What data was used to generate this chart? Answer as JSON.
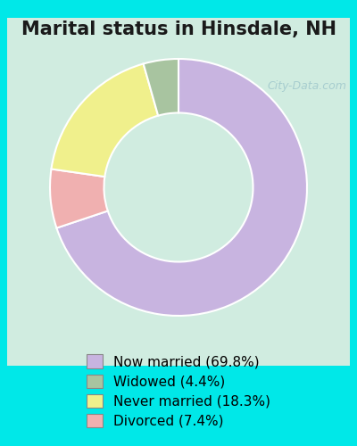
{
  "title": "Marital status in Hinsdale, NH",
  "slices": [
    69.8,
    4.4,
    18.3,
    7.4
  ],
  "labels": [
    "Now married (69.8%)",
    "Widowed (4.4%)",
    "Never married (18.3%)",
    "Divorced (7.4%)"
  ],
  "colors": [
    "#c8b4e0",
    "#a8c4a0",
    "#f0f08c",
    "#f0b0b0"
  ],
  "legend_colors": [
    "#c8b4e0",
    "#a8b89a",
    "#f0f060",
    "#f0a8a8"
  ],
  "startangle": 90,
  "bg_color_top": "#c8eee8",
  "bg_color_bottom": "#d8eec8",
  "watermark": "City-Data.com",
  "title_fontsize": 15,
  "legend_fontsize": 11
}
